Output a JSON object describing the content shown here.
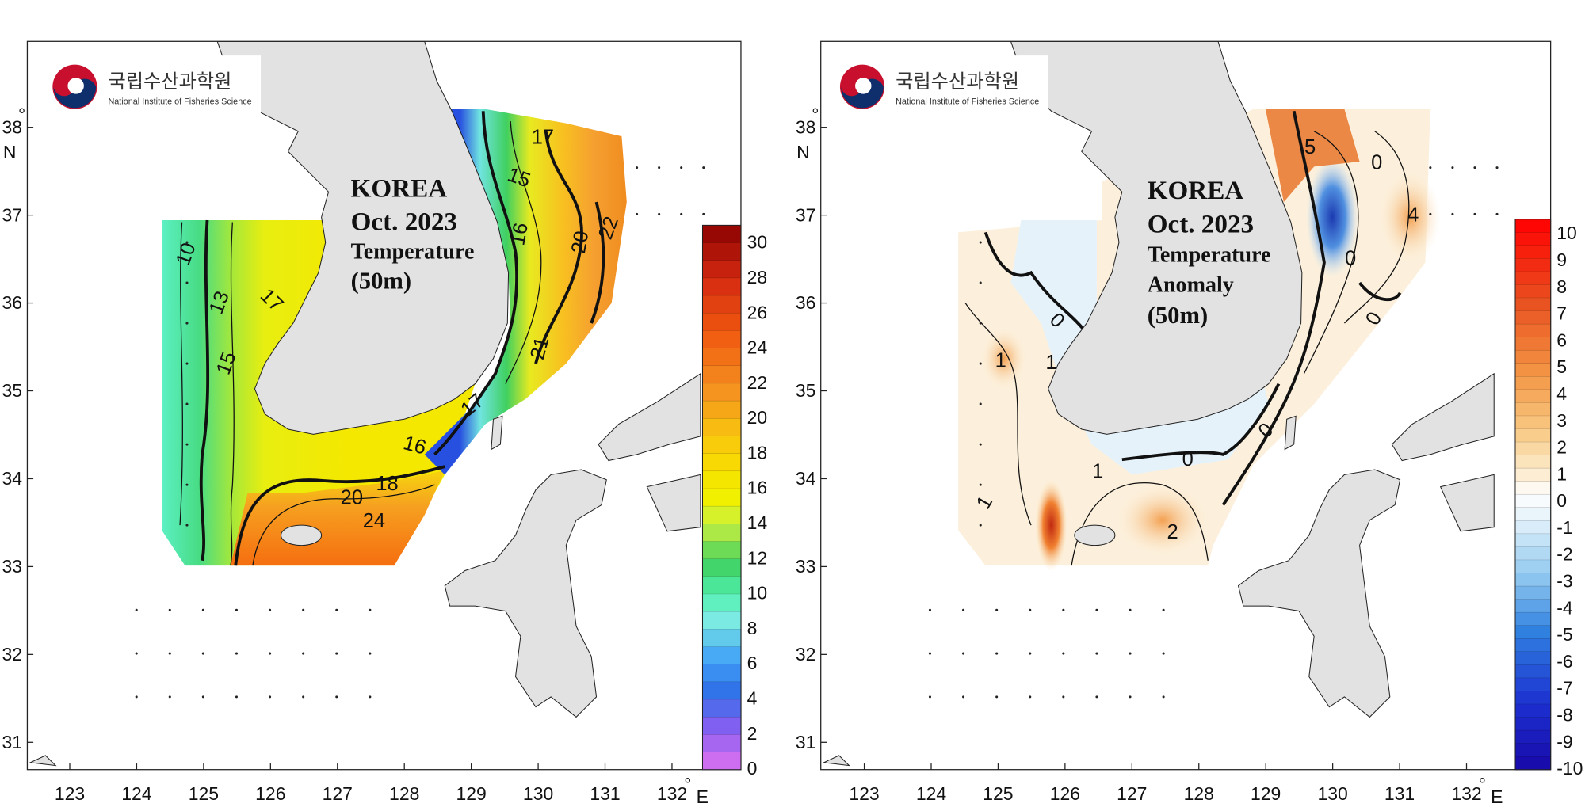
{
  "panels": [
    {
      "logo": {
        "name_ko": "국립수산과학원",
        "name_en": "National Institute of Fisheries Science"
      },
      "title": [
        "KOREA",
        "Oct. 2023",
        "Temperature",
        "(50m)"
      ],
      "x_axis": {
        "ticks": [
          "123",
          "124",
          "125",
          "126",
          "127",
          "128",
          "129",
          "130",
          "131",
          "132"
        ],
        "degree": "°",
        "unit": "E"
      },
      "y_axis": {
        "ticks": [
          "38",
          "37",
          "36",
          "35",
          "34",
          "33",
          "32",
          "31"
        ],
        "degree": "°",
        "unit": "N"
      },
      "colorbar": {
        "ticks": [
          30,
          28,
          26,
          24,
          22,
          20,
          18,
          16,
          14,
          12,
          10,
          8,
          6,
          4,
          2,
          0
        ]
      },
      "contour_labels": [
        "10",
        "13",
        "17",
        "15",
        "15",
        "17",
        "16",
        "20",
        "22",
        "21",
        "17",
        "16",
        "18",
        "20",
        "24"
      ]
    },
    {
      "logo": {
        "name_ko": "국립수산과학원",
        "name_en": "National Institute of Fisheries Science"
      },
      "title": [
        "KOREA",
        "Oct. 2023",
        "Temperature",
        "Anomaly",
        "(50m)"
      ],
      "x_axis": {
        "ticks": [
          "123",
          "124",
          "125",
          "126",
          "127",
          "128",
          "129",
          "130",
          "131",
          "132"
        ],
        "degree": "°",
        "unit": "E"
      },
      "y_axis": {
        "ticks": [
          "38",
          "37",
          "36",
          "35",
          "34",
          "33",
          "32",
          "31"
        ],
        "degree": "°",
        "unit": "N"
      },
      "colorbar": {
        "ticks": [
          10,
          9,
          8,
          7,
          6,
          5,
          4,
          3,
          2,
          1,
          0,
          -1,
          -2,
          -3,
          -4,
          -5,
          -6,
          -7,
          -8,
          -9,
          -10
        ]
      },
      "contour_labels": [
        "0",
        "1",
        "1",
        "0",
        "1",
        "1",
        "0",
        "2",
        "5",
        "0",
        "4",
        "0",
        "0"
      ]
    }
  ]
}
